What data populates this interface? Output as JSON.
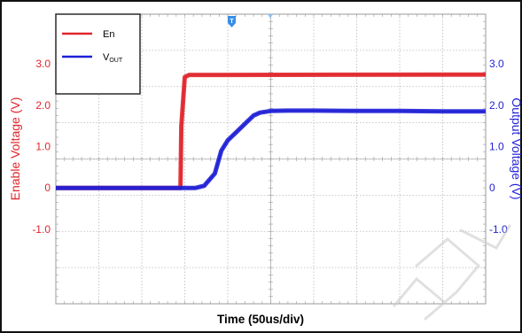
{
  "colors": {
    "en": "#e0252b",
    "vout": "#1f1fd6",
    "grid": "#b8b8b8",
    "frame": "#111111",
    "legend_border": "#2a2a2a",
    "marker": "#3a8ee6",
    "watermark": "#c8c8c8"
  },
  "chart_data": {
    "type": "line",
    "title": "",
    "xlabel": "Time  (50us/div)",
    "ylabel_left": "Enable Voltage  (V)",
    "ylabel_right": "Output Voltage  (V)",
    "x_divisions": 10,
    "x_range_div": [
      0,
      10
    ],
    "y_divisions": 8,
    "y_range": [
      -2.8,
      4.2
    ],
    "left_ticks": [
      "3.0",
      "2.0",
      "1.0",
      "0",
      "-1.0"
    ],
    "left_tick_values": [
      3.0,
      2.0,
      1.0,
      0,
      -1.0
    ],
    "right_ticks": [
      "3.0",
      "2.0",
      "1.0",
      "0",
      "-1.0"
    ],
    "right_tick_values": [
      3.0,
      2.0,
      1.0,
      0,
      -1.0
    ],
    "grid": true,
    "legend_position": "top-left",
    "legend": [
      {
        "key": "en",
        "label": "En"
      },
      {
        "key": "vout",
        "label": "V",
        "sub": "OUT"
      }
    ],
    "series": [
      {
        "key": "en",
        "name": "En",
        "x": [
          0,
          2.9,
          2.92,
          3.0,
          3.1,
          10
        ],
        "y": [
          0,
          0,
          1.5,
          2.68,
          2.73,
          2.74
        ]
      },
      {
        "key": "vout",
        "name": "VOUT",
        "x": [
          0,
          3.25,
          3.45,
          3.7,
          3.85,
          4.0,
          4.2,
          4.45,
          4.6,
          4.75,
          5.0,
          5.4,
          6,
          7,
          8,
          9,
          10
        ],
        "y": [
          0,
          0,
          0.05,
          0.35,
          0.9,
          1.15,
          1.35,
          1.6,
          1.75,
          1.82,
          1.86,
          1.87,
          1.87,
          1.86,
          1.86,
          1.85,
          1.85
        ]
      }
    ]
  }
}
